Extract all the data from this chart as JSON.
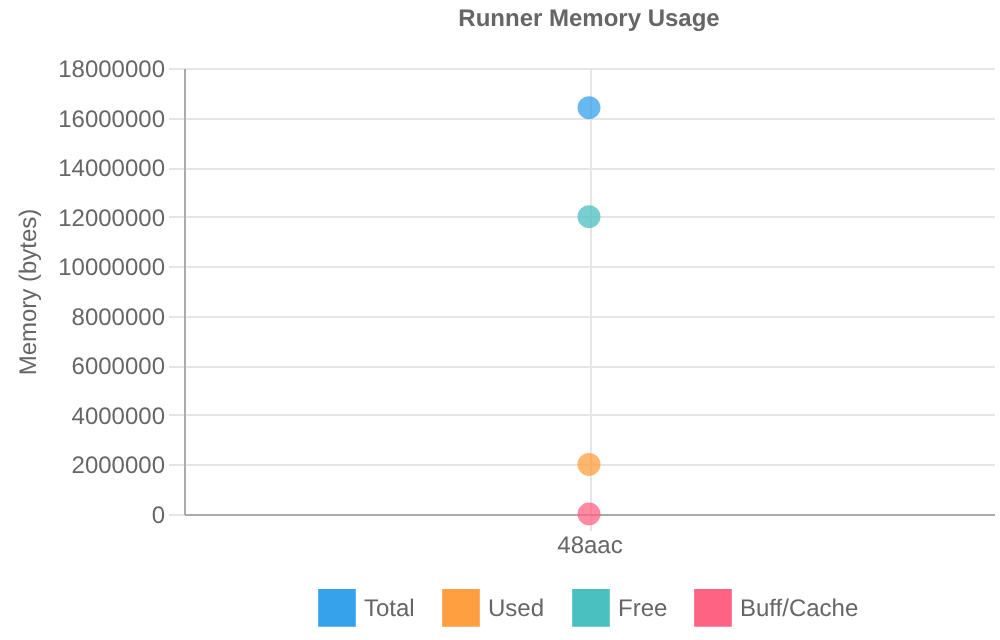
{
  "chart_data": {
    "type": "scatter",
    "title": "Runner Memory Usage",
    "ylabel": "Memory (bytes)",
    "categories": [
      "48aac"
    ],
    "series": [
      {
        "name": "Total",
        "color": "#36a2eb",
        "values": [
          16400000
        ]
      },
      {
        "name": "Used",
        "color": "#ff9f40",
        "values": [
          2000000
        ]
      },
      {
        "name": "Free",
        "color": "#4bc0c0",
        "values": [
          12000000
        ]
      },
      {
        "name": "Buff/Cache",
        "color": "#ff6384",
        "values": [
          0
        ]
      }
    ],
    "ylim": [
      0,
      18000000
    ],
    "yticks": [
      0,
      2000000,
      4000000,
      6000000,
      8000000,
      10000000,
      12000000,
      14000000,
      16000000,
      18000000
    ],
    "grid": true,
    "legend": "bottom",
    "marker": "circle"
  }
}
